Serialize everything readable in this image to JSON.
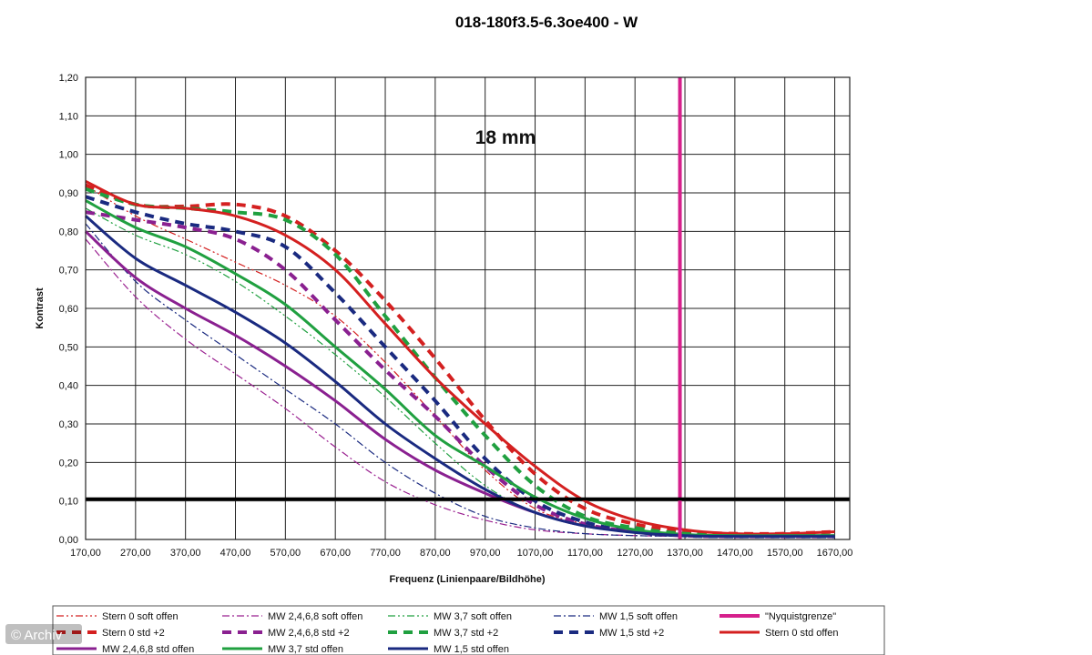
{
  "chart_data": {
    "type": "line",
    "title": "018-180f3.5-6.3oe400 - W",
    "xlabel": "Frequenz (Linienpaare/Bildhöhe)",
    "ylabel": "Kontrast",
    "annotation": "18 mm",
    "xlim": [
      170,
      1700
    ],
    "ylim": [
      0,
      1.2
    ],
    "x_ticks": [
      "170,00",
      "270,00",
      "370,00",
      "470,00",
      "570,00",
      "670,00",
      "770,00",
      "870,00",
      "970,00",
      "1070,00",
      "1170,00",
      "1270,00",
      "1370,00",
      "1470,00",
      "1570,00",
      "1670,00"
    ],
    "y_ticks": [
      "0,00",
      "0,10",
      "0,20",
      "0,30",
      "0,40",
      "0,50",
      "0,60",
      "0,70",
      "0,80",
      "0,90",
      "1,00",
      "1,10",
      "1,20"
    ],
    "grid": true,
    "legend_position": "bottom",
    "threshold_line": {
      "y": 0.105,
      "color": "#000000"
    },
    "nyquist_line": {
      "x": 1360,
      "color": "#d6208c"
    },
    "series": [
      {
        "name": "Stern 0 soft offen",
        "color": "#d42020",
        "style": "dashdotdot",
        "width": 1.2,
        "x": [
          170,
          270,
          370,
          470,
          570,
          670,
          770,
          870,
          970,
          1070,
          1170,
          1270,
          1370,
          1470,
          1570,
          1670
        ],
        "y": [
          0.92,
          0.84,
          0.78,
          0.72,
          0.66,
          0.58,
          0.46,
          0.32,
          0.18,
          0.08,
          0.04,
          0.02,
          0.012,
          0.01,
          0.01,
          0.01
        ]
      },
      {
        "name": "MW 2,4,6,8 soft offen",
        "color": "#9a2090",
        "style": "dashdot",
        "width": 1.2,
        "x": [
          170,
          270,
          370,
          470,
          570,
          670,
          770,
          870,
          970,
          1070,
          1170,
          1270,
          1370,
          1470,
          1570,
          1670
        ],
        "y": [
          0.78,
          0.63,
          0.52,
          0.43,
          0.34,
          0.24,
          0.15,
          0.09,
          0.05,
          0.025,
          0.015,
          0.01,
          0.008,
          0.006,
          0.006,
          0.006
        ]
      },
      {
        "name": "MW 3,7 soft offen",
        "color": "#20a040",
        "style": "dashdotdot",
        "width": 1.2,
        "x": [
          170,
          270,
          370,
          470,
          570,
          670,
          770,
          870,
          970,
          1070,
          1170,
          1270,
          1370,
          1470,
          1570,
          1670
        ],
        "y": [
          0.86,
          0.79,
          0.74,
          0.67,
          0.58,
          0.48,
          0.37,
          0.25,
          0.14,
          0.07,
          0.035,
          0.018,
          0.01,
          0.008,
          0.008,
          0.008
        ]
      },
      {
        "name": "MW 1,5 soft offen",
        "color": "#1a2a80",
        "style": "dashdot",
        "width": 1.2,
        "x": [
          170,
          270,
          370,
          470,
          570,
          670,
          770,
          870,
          970,
          1070,
          1170,
          1270,
          1370,
          1470,
          1570,
          1670
        ],
        "y": [
          0.82,
          0.67,
          0.57,
          0.48,
          0.39,
          0.3,
          0.2,
          0.12,
          0.06,
          0.03,
          0.015,
          0.01,
          0.008,
          0.006,
          0.006,
          0.006
        ]
      },
      {
        "name": "\"Nyquistgrenze\"",
        "color": "#d6208c",
        "style": "solid",
        "width": 4,
        "x": [
          1360,
          1360
        ],
        "y": [
          0,
          1.2
        ]
      },
      {
        "name": "Stern 0 std +2",
        "color": "#d42020",
        "style": "dashed",
        "width": 4,
        "x": [
          170,
          270,
          370,
          470,
          570,
          670,
          770,
          870,
          970,
          1070,
          1170,
          1270,
          1370,
          1470,
          1570,
          1670
        ],
        "y": [
          0.92,
          0.87,
          0.865,
          0.87,
          0.84,
          0.75,
          0.62,
          0.47,
          0.31,
          0.17,
          0.08,
          0.04,
          0.02,
          0.015,
          0.015,
          0.02
        ]
      },
      {
        "name": "MW 2,4,6,8 std +2",
        "color": "#8a2090",
        "style": "dashed",
        "width": 4,
        "x": [
          170,
          270,
          370,
          470,
          570,
          670,
          770,
          870,
          970,
          1070,
          1170,
          1270,
          1370,
          1470,
          1570,
          1670
        ],
        "y": [
          0.85,
          0.83,
          0.81,
          0.78,
          0.7,
          0.57,
          0.44,
          0.32,
          0.19,
          0.09,
          0.04,
          0.02,
          0.01,
          0.008,
          0.008,
          0.008
        ]
      },
      {
        "name": "MW 3,7 std +2",
        "color": "#20a040",
        "style": "dashed",
        "width": 4,
        "x": [
          170,
          270,
          370,
          470,
          570,
          670,
          770,
          870,
          970,
          1070,
          1170,
          1270,
          1370,
          1470,
          1570,
          1670
        ],
        "y": [
          0.91,
          0.87,
          0.86,
          0.85,
          0.83,
          0.74,
          0.58,
          0.42,
          0.27,
          0.14,
          0.06,
          0.03,
          0.015,
          0.01,
          0.01,
          0.01
        ]
      },
      {
        "name": "MW 1,5 std +2",
        "color": "#1a2a80",
        "style": "dashed",
        "width": 4,
        "x": [
          170,
          270,
          370,
          470,
          570,
          670,
          770,
          870,
          970,
          1070,
          1170,
          1270,
          1370,
          1470,
          1570,
          1670
        ],
        "y": [
          0.89,
          0.85,
          0.82,
          0.8,
          0.76,
          0.64,
          0.5,
          0.36,
          0.21,
          0.1,
          0.045,
          0.02,
          0.01,
          0.008,
          0.008,
          0.008
        ]
      },
      {
        "name": "Stern 0 std offen",
        "color": "#d42020",
        "style": "solid",
        "width": 3,
        "x": [
          170,
          270,
          370,
          470,
          570,
          670,
          770,
          870,
          970,
          1070,
          1170,
          1270,
          1370,
          1470,
          1570,
          1670
        ],
        "y": [
          0.93,
          0.87,
          0.86,
          0.84,
          0.79,
          0.7,
          0.56,
          0.42,
          0.3,
          0.19,
          0.1,
          0.05,
          0.025,
          0.015,
          0.015,
          0.02
        ]
      },
      {
        "name": "MW 2,4,6,8 std offen",
        "color": "#8a2090",
        "style": "solid",
        "width": 3,
        "x": [
          170,
          270,
          370,
          470,
          570,
          670,
          770,
          870,
          970,
          1070,
          1170,
          1270,
          1370,
          1470,
          1570,
          1670
        ],
        "y": [
          0.8,
          0.68,
          0.6,
          0.53,
          0.45,
          0.36,
          0.26,
          0.18,
          0.12,
          0.07,
          0.035,
          0.02,
          0.012,
          0.01,
          0.01,
          0.01
        ]
      },
      {
        "name": "MW 3,7 std offen",
        "color": "#20a040",
        "style": "solid",
        "width": 3,
        "x": [
          170,
          270,
          370,
          470,
          570,
          670,
          770,
          870,
          970,
          1070,
          1170,
          1270,
          1370,
          1470,
          1570,
          1670
        ],
        "y": [
          0.88,
          0.81,
          0.76,
          0.69,
          0.61,
          0.5,
          0.39,
          0.27,
          0.19,
          0.11,
          0.055,
          0.025,
          0.013,
          0.01,
          0.01,
          0.01
        ]
      },
      {
        "name": "MW 1,5 std offen",
        "color": "#1a2a80",
        "style": "solid",
        "width": 3,
        "x": [
          170,
          270,
          370,
          470,
          570,
          670,
          770,
          870,
          970,
          1070,
          1170,
          1270,
          1370,
          1470,
          1570,
          1670
        ],
        "y": [
          0.84,
          0.73,
          0.66,
          0.59,
          0.51,
          0.41,
          0.3,
          0.21,
          0.13,
          0.07,
          0.035,
          0.018,
          0.01,
          0.008,
          0.008,
          0.008
        ]
      }
    ]
  },
  "watermark": "© Archiv"
}
